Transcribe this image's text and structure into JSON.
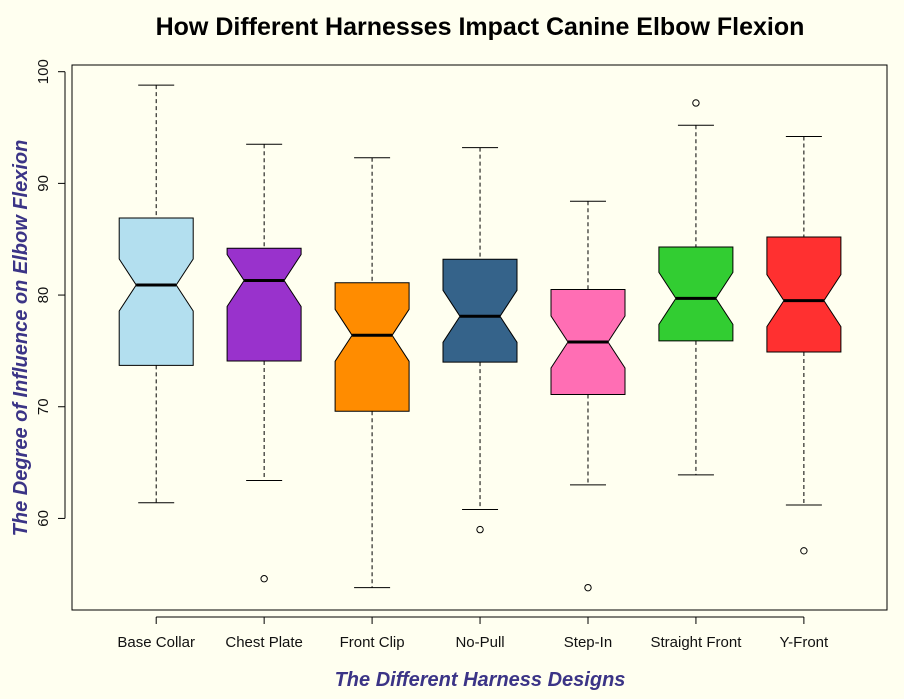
{
  "chart_data": {
    "type": "boxplot",
    "title": "How Different Harnesses Impact Canine Elbow Flexion",
    "xlabel": "The Different Harness Designs",
    "ylabel": "The Degree of Influence on Elbow Flexion",
    "label_color": "#3b3486",
    "background": "#fffff0",
    "ylim": [
      51.8,
      100.6
    ],
    "yticks": [
      60,
      70,
      80,
      90,
      100
    ],
    "notched": true,
    "categories": [
      "Base Collar",
      "Chest Plate",
      "Front Clip",
      "No-Pull",
      "Step-In",
      "Straight Front",
      "Y-Front"
    ],
    "series": [
      {
        "name": "Base Collar",
        "color": "#b3dfef",
        "whisker_low": 61.4,
        "q1": 73.7,
        "median": 80.9,
        "q3": 86.9,
        "whisker_high": 98.8,
        "outliers": []
      },
      {
        "name": "Chest Plate",
        "color": "#9932cc",
        "whisker_low": 63.4,
        "q1": 74.1,
        "median": 81.3,
        "q3": 84.2,
        "whisker_high": 93.5,
        "outliers": [
          54.6
        ]
      },
      {
        "name": "Front Clip",
        "color": "#ff8c00",
        "whisker_low": 53.8,
        "q1": 69.6,
        "median": 76.4,
        "q3": 81.1,
        "whisker_high": 92.3,
        "outliers": []
      },
      {
        "name": "No-Pull",
        "color": "#35638a",
        "whisker_low": 60.8,
        "q1": 74.0,
        "median": 78.1,
        "q3": 83.2,
        "whisker_high": 93.2,
        "outliers": [
          59.0
        ]
      },
      {
        "name": "Step-In",
        "color": "#ff6eb4",
        "whisker_low": 63.0,
        "q1": 71.1,
        "median": 75.8,
        "q3": 80.5,
        "whisker_high": 88.4,
        "outliers": [
          53.8
        ]
      },
      {
        "name": "Straight Front",
        "color": "#32cd32",
        "whisker_low": 63.9,
        "q1": 75.9,
        "median": 79.7,
        "q3": 84.3,
        "whisker_high": 95.2,
        "outliers": [
          97.2
        ]
      },
      {
        "name": "Y-Front",
        "color": "#ff3030",
        "whisker_low": 61.2,
        "q1": 74.9,
        "median": 79.5,
        "q3": 85.2,
        "whisker_high": 94.2,
        "outliers": [
          57.1
        ]
      }
    ]
  }
}
